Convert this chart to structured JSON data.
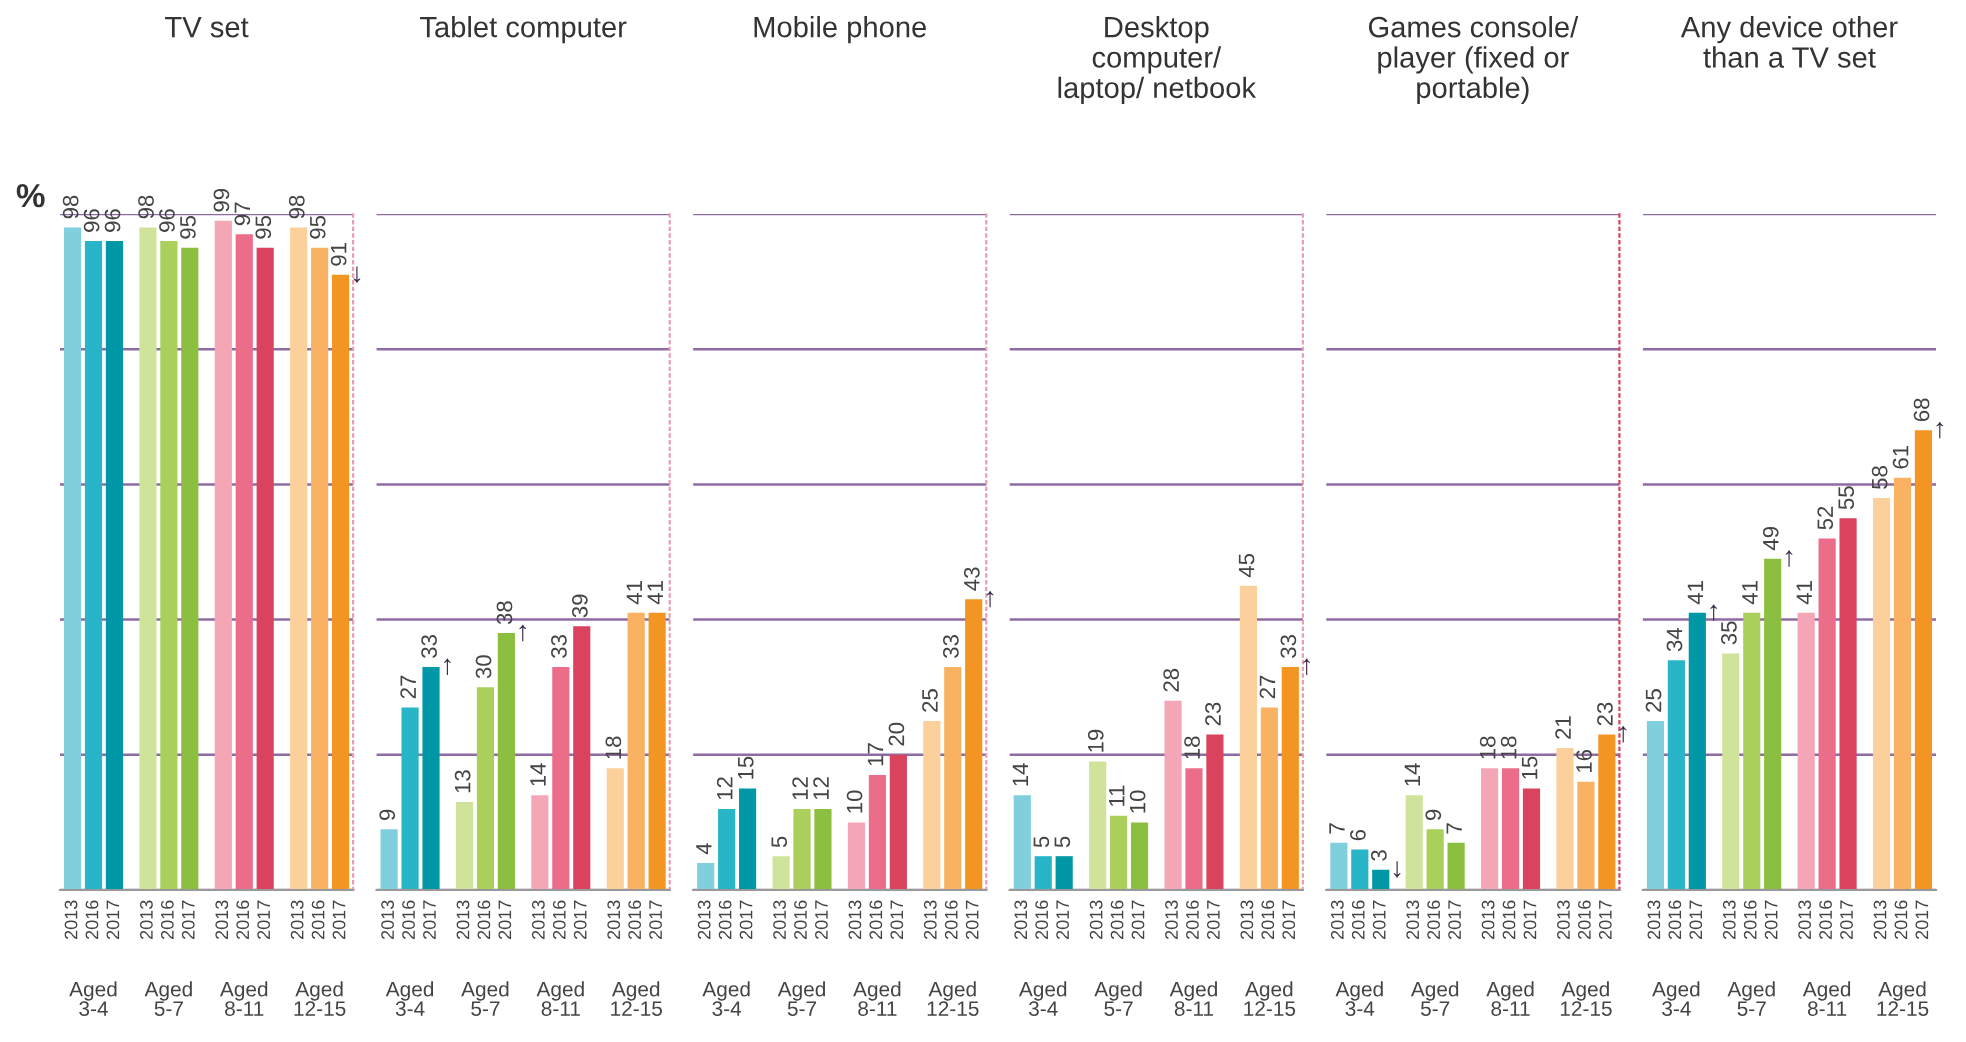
{
  "chart_data": [
    {
      "type": "bar",
      "title": "TV set",
      "ylabel": "%",
      "categories": [
        "2013",
        "2016",
        "2017",
        "2013",
        "2016",
        "2017",
        "2013",
        "2016",
        "2017",
        "2013",
        "2016",
        "2017"
      ],
      "ylim": [
        0,
        100
      ],
      "yticks": [
        {
          "value": 0,
          "label": null
        },
        {
          "value": 20,
          "label": null
        },
        {
          "value": 40,
          "label": null
        },
        {
          "value": 60,
          "label": null
        },
        {
          "value": 80,
          "label": null
        },
        {
          "value": 100,
          "label": null
        }
      ],
      "grid": "y",
      "tick_labels": "x",
      "data_labels": true,
      "colors": [
        "#7fcfdc",
        "#29b5c8",
        "#0097a7",
        "#d0e39a",
        "#aacf5a",
        "#8cbf3f",
        "#f4a6b7",
        "#ec6d8a",
        "#d9435e",
        "#fbd09a",
        "#f9b262",
        "#f39522"
      ],
      "values": [
        98,
        96,
        96,
        98,
        96,
        95,
        99,
        97,
        95,
        98,
        95,
        91
      ],
      "annotations": [
        "Aged 3-4",
        "Aged 5-7",
        "Aged 8-11",
        "Aged 12-15",
        {
          "text": "↓",
          "y": 91
        }
      ]
    },
    {
      "type": "bar",
      "title": "Tablet computer",
      "categories": [
        "2013",
        "2016",
        "2017",
        "2013",
        "2016",
        "2017",
        "2013",
        "2016",
        "2017",
        "2013",
        "2016",
        "2017"
      ],
      "ylim": [
        0,
        100
      ],
      "yticks": [
        {
          "value": 0,
          "label": null
        },
        {
          "value": 20,
          "label": null
        },
        {
          "value": 40,
          "label": null
        },
        {
          "value": 60,
          "label": null
        },
        {
          "value": 80,
          "label": null
        },
        {
          "value": 100,
          "label": null
        }
      ],
      "grid": "y",
      "tick_labels": "x",
      "data_labels": true,
      "colors": [
        "#7fcfdc",
        "#29b5c8",
        "#0097a7",
        "#d0e39a",
        "#aacf5a",
        "#8cbf3f",
        "#f4a6b7",
        "#ec6d8a",
        "#d9435e",
        "#fbd09a",
        "#f9b262",
        "#f39522"
      ],
      "values": [
        9,
        27,
        33,
        13,
        30,
        38,
        14,
        33,
        39,
        18,
        41,
        41
      ],
      "annotations": [
        "Aged 3-4",
        "Aged 5-7",
        "Aged 8-11",
        "Aged 12-15",
        {
          "text": "↑",
          "y": 33
        },
        {
          "text": "↑",
          "y": 38
        }
      ]
    },
    {
      "type": "bar",
      "title": "Mobile phone",
      "categories": [
        "2013",
        "2016",
        "2017",
        "2013",
        "2016",
        "2017",
        "2013",
        "2016",
        "2017",
        "2013",
        "2016",
        "2017"
      ],
      "ylim": [
        0,
        100
      ],
      "yticks": [
        {
          "value": 0,
          "label": null
        },
        {
          "value": 20,
          "label": null
        },
        {
          "value": 40,
          "label": null
        },
        {
          "value": 60,
          "label": null
        },
        {
          "value": 80,
          "label": null
        },
        {
          "value": 100,
          "label": null
        }
      ],
      "grid": "y",
      "tick_labels": "x",
      "data_labels": true,
      "colors": [
        "#7fcfdc",
        "#29b5c8",
        "#0097a7",
        "#d0e39a",
        "#aacf5a",
        "#8cbf3f",
        "#f4a6b7",
        "#ec6d8a",
        "#d9435e",
        "#fbd09a",
        "#f9b262",
        "#f39522"
      ],
      "values": [
        4,
        12,
        15,
        5,
        12,
        12,
        10,
        17,
        20,
        25,
        33,
        43
      ],
      "annotations": [
        "Aged 3-4",
        "Aged 5-7",
        "Aged 8-11",
        "Aged 12-15",
        {
          "text": "↑",
          "y": 43
        }
      ]
    },
    {
      "type": "bar",
      "title": "Desktop\ncomputer/\nlaptop/ netbook",
      "categories": [
        "2013",
        "2016",
        "2017",
        "2013",
        "2016",
        "2017",
        "2013",
        "2016",
        "2017",
        "2013",
        "2016",
        "2017"
      ],
      "ylim": [
        0,
        100
      ],
      "yticks": [
        {
          "value": 0,
          "label": null
        },
        {
          "value": 20,
          "label": null
        },
        {
          "value": 40,
          "label": null
        },
        {
          "value": 60,
          "label": null
        },
        {
          "value": 80,
          "label": null
        },
        {
          "value": 100,
          "label": null
        }
      ],
      "grid": "y",
      "tick_labels": "x",
      "data_labels": true,
      "colors": [
        "#7fcfdc",
        "#29b5c8",
        "#0097a7",
        "#d0e39a",
        "#aacf5a",
        "#8cbf3f",
        "#f4a6b7",
        "#ec6d8a",
        "#d9435e",
        "#fbd09a",
        "#f9b262",
        "#f39522"
      ],
      "values": [
        14,
        5,
        5,
        19,
        11,
        10,
        28,
        18,
        23,
        45,
        27,
        33
      ],
      "annotations": [
        "Aged 3-4",
        "Aged 5-7",
        "Aged 8-11",
        "Aged 12-15",
        {
          "text": "↑",
          "y": 33
        }
      ]
    },
    {
      "type": "bar",
      "title": "Games console/\nplayer (fixed or\nportable)",
      "categories": [
        "2013",
        "2016",
        "2017",
        "2013",
        "2016",
        "2017",
        "2013",
        "2016",
        "2017",
        "2013",
        "2016",
        "2017"
      ],
      "ylim": [
        0,
        100
      ],
      "yticks": [
        {
          "value": 0,
          "label": null
        },
        {
          "value": 20,
          "label": null
        },
        {
          "value": 40,
          "label": null
        },
        {
          "value": 60,
          "label": null
        },
        {
          "value": 80,
          "label": null
        },
        {
          "value": 100,
          "label": null
        }
      ],
      "grid": "y",
      "tick_labels": "x",
      "data_labels": true,
      "colors": [
        "#7fcfdc",
        "#29b5c8",
        "#0097a7",
        "#d0e39a",
        "#aacf5a",
        "#8cbf3f",
        "#f4a6b7",
        "#ec6d8a",
        "#d9435e",
        "#fbd09a",
        "#f9b262",
        "#f39522"
      ],
      "values": [
        7,
        6,
        3,
        14,
        9,
        7,
        18,
        18,
        15,
        21,
        16,
        23
      ],
      "annotations": [
        "Aged 3-4",
        "Aged 5-7",
        "Aged 8-11",
        "Aged 12-15",
        {
          "text": "↓",
          "y": 3
        },
        {
          "text": "↑",
          "y": 23
        }
      ]
    },
    {
      "type": "bar",
      "title": "Any device other\nthan a TV set",
      "categories": [
        "2013",
        "2016",
        "2017",
        "2013",
        "2016",
        "2017",
        "2013",
        "2016",
        "2017",
        "2013",
        "2016",
        "2017"
      ],
      "ylim": [
        0,
        100
      ],
      "yticks": [
        {
          "value": 0,
          "label": null
        },
        {
          "value": 20,
          "label": null
        },
        {
          "value": 40,
          "label": null
        },
        {
          "value": 60,
          "label": null
        },
        {
          "value": 80,
          "label": null
        },
        {
          "value": 100,
          "label": null
        }
      ],
      "grid": "y",
      "tick_labels": "x",
      "data_labels": true,
      "colors": [
        "#7fcfdc",
        "#29b5c8",
        "#0097a7",
        "#d0e39a",
        "#aacf5a",
        "#8cbf3f",
        "#f4a6b7",
        "#ec6d8a",
        "#d9435e",
        "#fbd09a",
        "#f9b262",
        "#f39522"
      ],
      "values": [
        25,
        34,
        41,
        35,
        41,
        49,
        41,
        52,
        55,
        58,
        61,
        68
      ],
      "annotations": [
        "Aged 3-4",
        "Aged 5-7",
        "Aged 8-11",
        "Aged 12-15",
        {
          "text": "↑",
          "y": 41
        },
        {
          "text": "↑",
          "y": 49
        },
        {
          "text": "↑",
          "y": 68
        }
      ]
    }
  ]
}
